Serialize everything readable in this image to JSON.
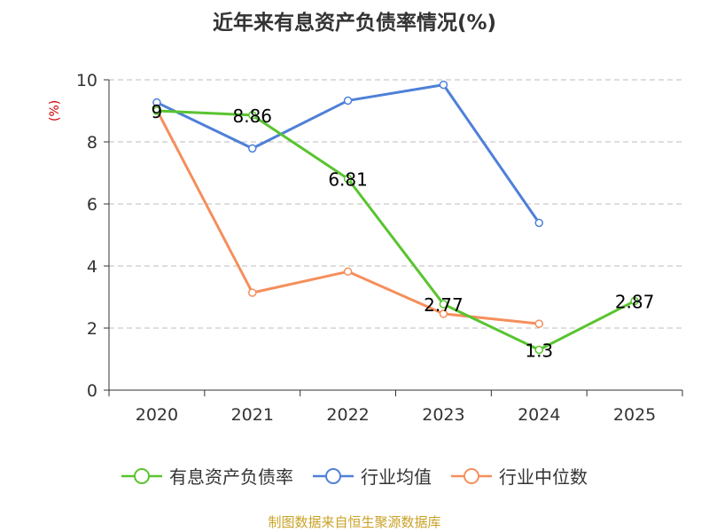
{
  "chart_data": {
    "type": "line",
    "title": "近年来有息资产负债率情况(%)",
    "unit_label": "(%)",
    "categories": [
      "2020",
      "2021",
      "2022",
      "2023",
      "2024",
      "2025"
    ],
    "ylim": [
      0,
      10
    ],
    "yticks": [
      0,
      2,
      4,
      6,
      8,
      10
    ],
    "grid": true,
    "legend_position": "bottom",
    "series": [
      {
        "name": "有息资产负债率",
        "values": [
          9,
          8.86,
          6.81,
          2.77,
          1.3,
          2.87
        ],
        "labels": [
          "9",
          "8.86",
          "6.81",
          "2.77",
          "1.3",
          "2.87"
        ],
        "color": "#59c42f"
      },
      {
        "name": "行业均值",
        "values": [
          9.27,
          7.79,
          9.33,
          9.84,
          5.39,
          null
        ],
        "color": "#4f80d8"
      },
      {
        "name": "行业中位数",
        "values": [
          9.03,
          3.14,
          3.82,
          2.46,
          2.14,
          null
        ],
        "color": "#f58f5c"
      }
    ]
  },
  "footer": {
    "source": "制图数据来自恒生聚源数据库"
  }
}
